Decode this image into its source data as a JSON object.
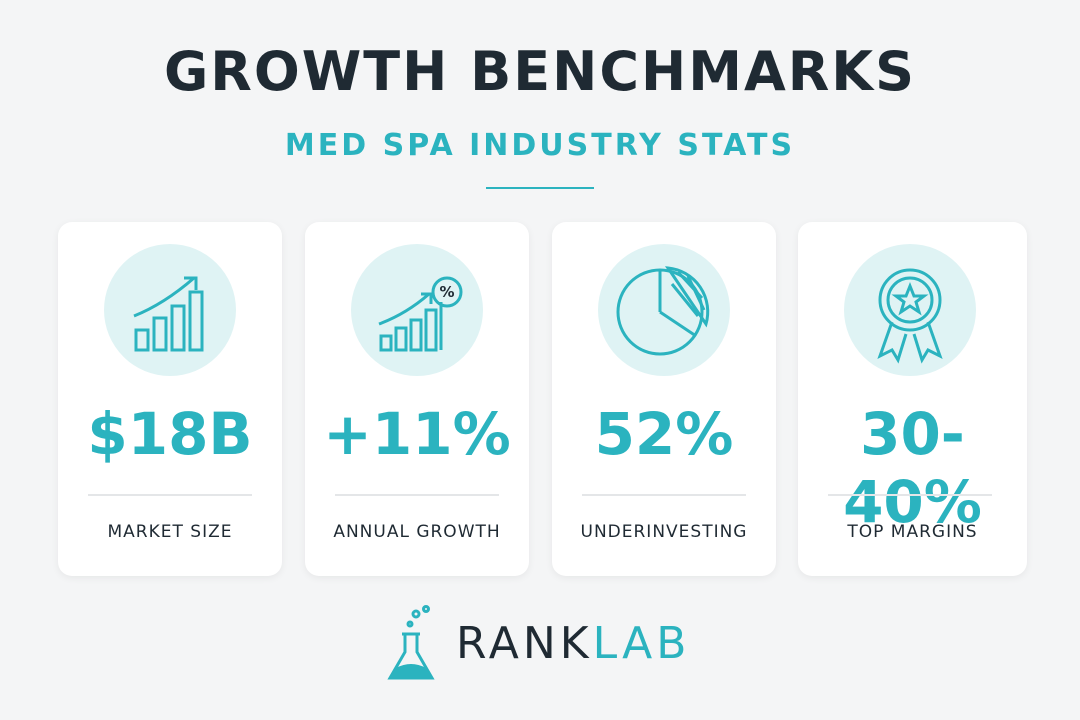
{
  "header": {
    "title": "GROWTH BENCHMARKS",
    "subtitle": "MED SPA INDUSTRY STATS"
  },
  "cards": [
    {
      "value": "$18B",
      "label": "MARKET SIZE"
    },
    {
      "value": "+11%",
      "label": "ANNUAL GROWTH"
    },
    {
      "value": "52%",
      "label": "UNDERINVESTING"
    },
    {
      "value": "30-40%",
      "label": "TOP MARGINS"
    }
  ],
  "footer": {
    "brand_left": "RANK",
    "brand_right": "LAB"
  }
}
